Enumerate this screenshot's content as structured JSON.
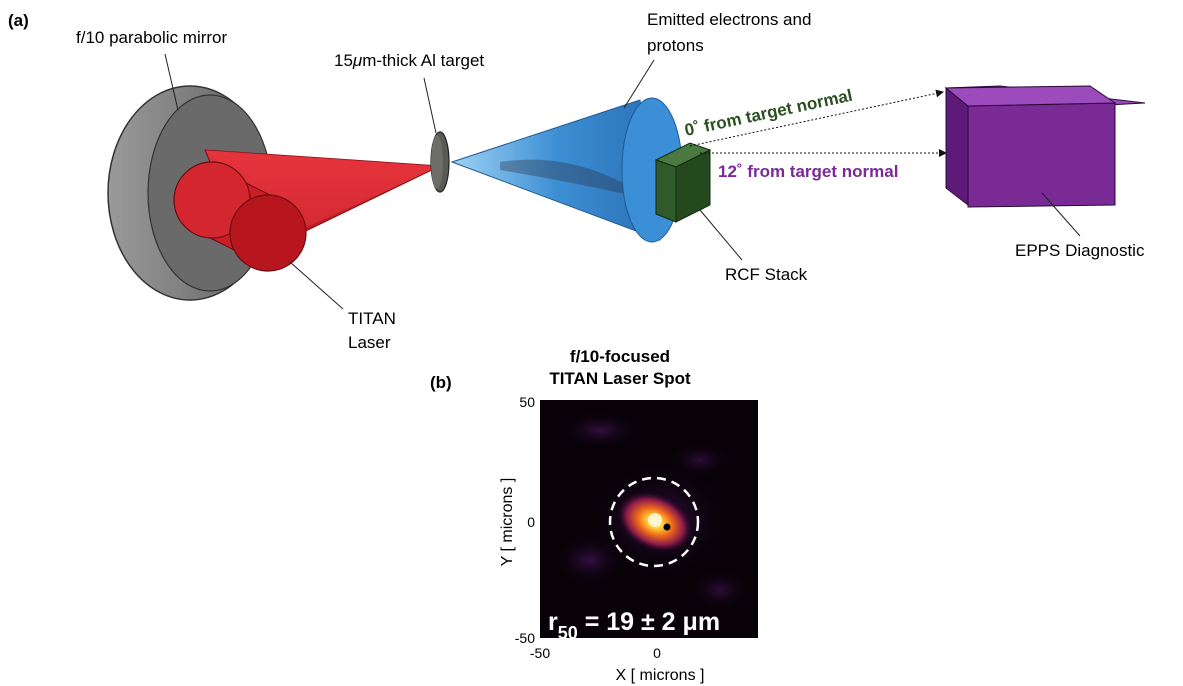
{
  "panel_a": {
    "label": "(a)",
    "mirror_label": "f/10 parabolic mirror",
    "target_label_prefix": "15",
    "target_label_mu": "μ",
    "target_label_suffix": "m-thick Al target",
    "emitted_label_line1": "Emitted electrons and",
    "emitted_label_line2": "protons",
    "zero_deg_label": "0˚ from target normal",
    "twelve_deg_label": "12˚ from target normal",
    "epps_label": "EPPS Diagnostic",
    "rcf_label": "RCF Stack",
    "laser_label_line1": "TITAN",
    "laser_label_line2": "Laser",
    "colors": {
      "laser": "#d0202a",
      "cone": "#3a8fd6",
      "rcf": "#2e5e2a",
      "epps": "#7a2a94",
      "zero_deg_text": "#2b4f22",
      "twelve_deg_text": "#7a2a94"
    }
  },
  "panel_b": {
    "label": "(b)",
    "title_line1": "f/10-focused",
    "title_line2": "TITAN Laser Spot",
    "xlabel": "X [ microns ]",
    "ylabel": "Y [ microns ]",
    "x_ticks": [
      "-50",
      "0"
    ],
    "y_ticks": [
      "50",
      "0",
      "-50"
    ],
    "annotation_r": "r",
    "annotation_sub": "50",
    "annotation_rest": " = 19 ± 2 μm"
  }
}
